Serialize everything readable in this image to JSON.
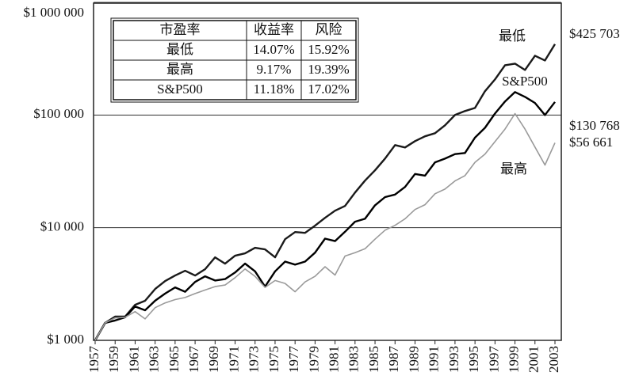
{
  "chart_data": {
    "type": "line",
    "x": [
      1957,
      1958,
      1959,
      1960,
      1961,
      1962,
      1963,
      1964,
      1965,
      1966,
      1967,
      1968,
      1969,
      1970,
      1971,
      1972,
      1973,
      1974,
      1975,
      1976,
      1977,
      1978,
      1979,
      1980,
      1981,
      1982,
      1983,
      1984,
      1985,
      1986,
      1987,
      1988,
      1989,
      1990,
      1991,
      1992,
      1993,
      1994,
      1995,
      1996,
      1997,
      1998,
      1999,
      2000,
      2001,
      2002,
      2003
    ],
    "series": [
      {
        "name": "最低",
        "color": "#1a1a1a",
        "end_label": "$425 703",
        "values": [
          1000,
          1427,
          1624,
          1624,
          2069,
          2244,
          2858,
          3360,
          3762,
          4146,
          3762,
          4285,
          5458,
          4796,
          5640,
          5918,
          6625,
          6412,
          5458,
          7907,
          9145,
          8998,
          10420,
          12240,
          14150,
          15590,
          20510,
          26150,
          32270,
          41110,
          54080,
          51520,
          58620,
          64710,
          69000,
          81100,
          100000,
          108400,
          115600,
          162500,
          207000,
          276700,
          285900,
          251200,
          335900,
          304800,
          425703
        ]
      },
      {
        "name": "S&P500",
        "color": "#000000",
        "end_label": "$130 768",
        "values": [
          1000,
          1430,
          1500,
          1600,
          2000,
          1850,
          2250,
          2600,
          2950,
          2700,
          3300,
          3700,
          3400,
          3500,
          4000,
          4800,
          4100,
          3000,
          4100,
          5000,
          4700,
          5000,
          6000,
          8000,
          7600,
          9200,
          11300,
          12000,
          15800,
          18700,
          19700,
          23000,
          30000,
          29000,
          38000,
          41000,
          45000,
          46000,
          63000,
          77000,
          103000,
          132000,
          160000,
          145000,
          128000,
          100000,
          130768
        ]
      },
      {
        "name": "最高",
        "color": "#9a9a9a",
        "end_label": "$56 661",
        "values": [
          1000,
          1430,
          1580,
          1600,
          1800,
          1550,
          1950,
          2150,
          2300,
          2400,
          2600,
          2800,
          3000,
          3100,
          3600,
          4300,
          3700,
          2950,
          3400,
          3200,
          2700,
          3300,
          3700,
          4500,
          3800,
          5600,
          6000,
          6500,
          7900,
          9500,
          10500,
          12000,
          14500,
          16000,
          20000,
          22000,
          26000,
          29000,
          38000,
          45000,
          58000,
          75000,
          103000,
          75000,
          52000,
          36000,
          56661
        ]
      }
    ],
    "xlim": [
      1957,
      2003
    ],
    "xticks": [
      1957,
      1959,
      1961,
      1963,
      1965,
      1967,
      1969,
      1971,
      1973,
      1975,
      1977,
      1979,
      1981,
      1983,
      1985,
      1987,
      1989,
      1991,
      1993,
      1995,
      1997,
      1999,
      2001,
      2003
    ],
    "ylim": [
      1000,
      1000000
    ],
    "yticks": [
      {
        "value": 1000,
        "label": "$1 000"
      },
      {
        "value": 10000,
        "label": "$10 000"
      },
      {
        "value": 100000,
        "label": "$100 000"
      },
      {
        "value": 1000000,
        "label": "$1 000 000"
      }
    ],
    "log_scale": true,
    "grid": true,
    "table": {
      "header": [
        "市盈率",
        "收益率",
        "风险"
      ],
      "rows": [
        [
          "最低",
          "14.07%",
          "15.92%"
        ],
        [
          "最高",
          "9.17%",
          "19.39%"
        ],
        [
          "S&P500",
          "11.18%",
          "17.02%"
        ]
      ]
    }
  }
}
